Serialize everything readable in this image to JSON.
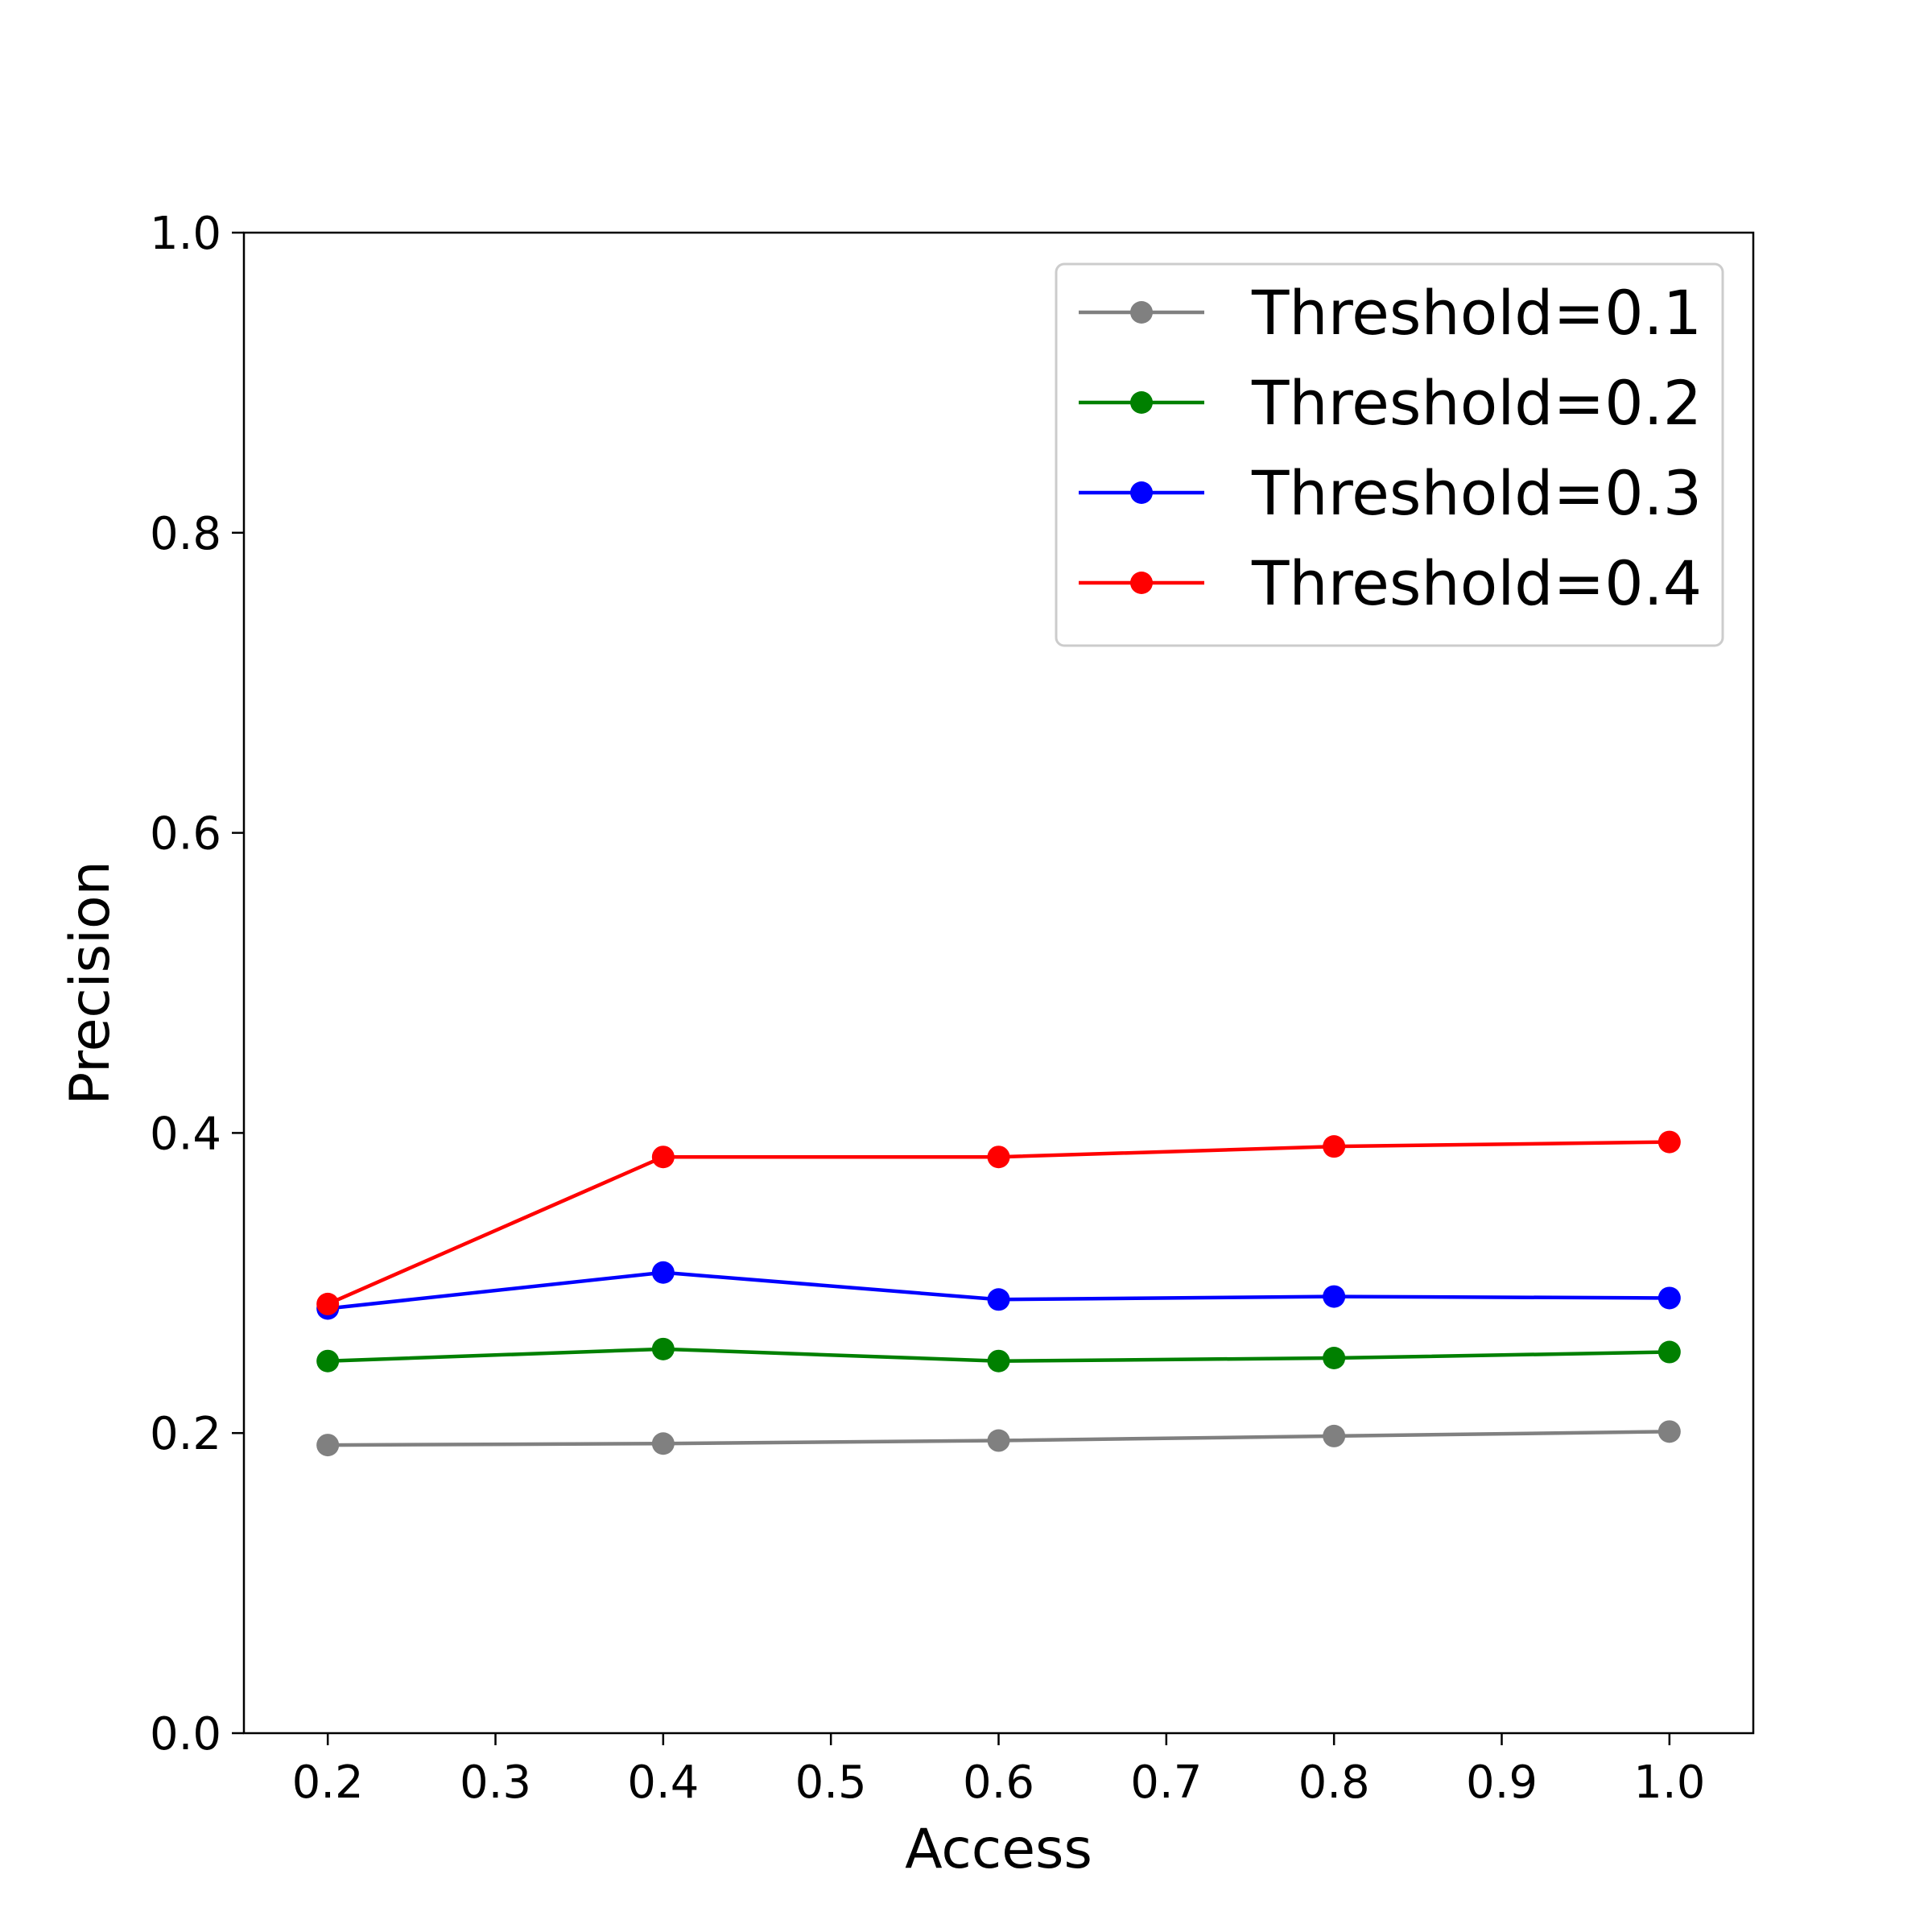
{
  "chart_data": {
    "type": "line",
    "title": "",
    "xlabel": "Access",
    "ylabel": "Precision",
    "xlim": [
      0.15,
      1.05
    ],
    "ylim": [
      0.0,
      1.0
    ],
    "xticks": [
      0.2,
      0.3,
      0.4,
      0.5,
      0.6,
      0.7,
      0.8,
      0.9,
      1.0
    ],
    "xtick_labels": [
      "0.2",
      "0.3",
      "0.4",
      "0.5",
      "0.6",
      "0.7",
      "0.8",
      "0.9",
      "1.0"
    ],
    "yticks": [
      0.0,
      0.2,
      0.4,
      0.6,
      0.8,
      1.0
    ],
    "ytick_labels": [
      "0.0",
      "0.2",
      "0.4",
      "0.6",
      "0.8",
      "1.0"
    ],
    "grid": false,
    "legend_position": "top-right",
    "x": [
      0.2,
      0.4,
      0.6,
      0.8,
      1.0
    ],
    "series": [
      {
        "name": "Threshold=0.1",
        "color": "#808080",
        "values": [
          0.192,
          0.193,
          0.195,
          0.198,
          0.201
        ]
      },
      {
        "name": "Threshold=0.2",
        "color": "#008000",
        "values": [
          0.248,
          0.256,
          0.248,
          0.25,
          0.254
        ]
      },
      {
        "name": "Threshold=0.3",
        "color": "#0000ff",
        "values": [
          0.283,
          0.307,
          0.289,
          0.291,
          0.29
        ]
      },
      {
        "name": "Threshold=0.4",
        "color": "#ff0000",
        "values": [
          0.286,
          0.384,
          0.384,
          0.391,
          0.394
        ]
      }
    ]
  }
}
